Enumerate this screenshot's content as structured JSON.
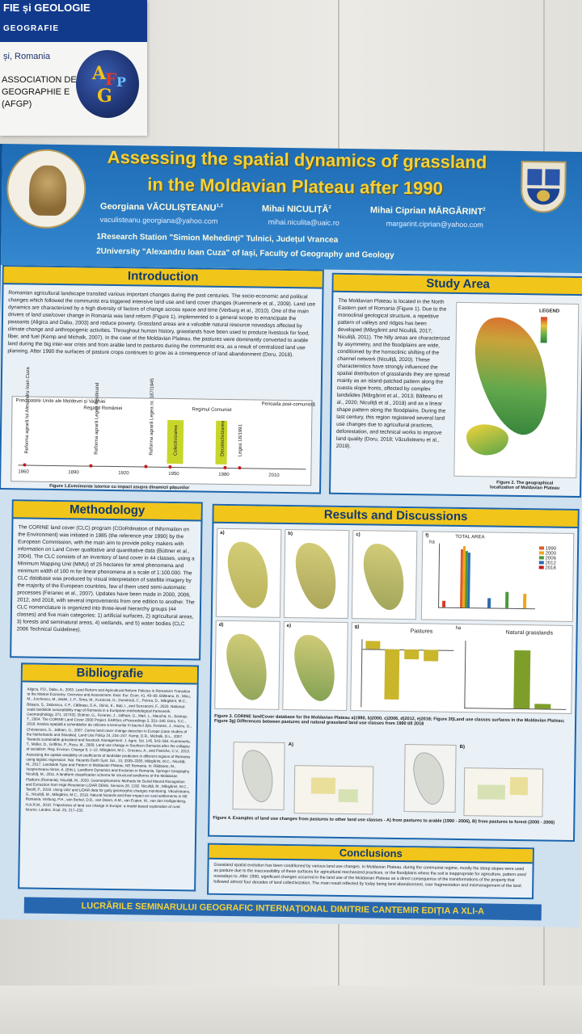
{
  "sign": {
    "line1": "FIE și GEOLOGIE",
    "line2": "GEOGRAFIE",
    "line3": "și, Romania",
    "line4": "ASSOCIATION DE GEOGRAPHIE E (AFGP)",
    "logo_letters": [
      "A",
      "F",
      "G",
      "P"
    ]
  },
  "header": {
    "title_line1": "Assessing the spatial dynamics of grassland",
    "title_line2": "in the  Moldavian Plateau after 1990",
    "authors": [
      {
        "name": "Georgiana VĂCULIȘTEANU",
        "sup": "1,2",
        "email": "vaculisteanu.georgiana@yahoo.com"
      },
      {
        "name": "Mihai NICULIȚĂ",
        "sup": "2",
        "email": "mihai.niculita@uaic.ro"
      },
      {
        "name": "Mihai Ciprian MĂRGĂRINT",
        "sup": "2",
        "email": "margarint.ciprian@yahoo.com"
      }
    ],
    "affiliation1": "1Research Station \"Simion Mehedinți\" Tulnici, Județul Vrancea",
    "affiliation2": "2University \"Alexandru Ioan Cuza\" of Iași, Faculty of Geography and Geology",
    "seal_text": "ALMA MATER IASIENSIS · UNA ROLA TERRA PRO OMNIBUS"
  },
  "introduction": {
    "heading": "Introduction",
    "body": "Romanian agricultural landscape transited various important changes during the past centuries. The socio-economic and political changes which followed the communist era triggered intensive land use and land cover changes (Kuemmerle et al., 2009). Land use dynamics are characterized by a high diversity of factors of change across space and time (Verburg et al., 2010). One of the main drivers of land use/cover change in Romania was land reform (Figure 1), implemented to a general scope to emancipate the peasants (Aligica and Dabu, 2003) and reduce poverty. Grassland areas are a valuable natural resource nowadays affected by climate change and anthropogenic activities. Throughout human history, grasslands have been used to produce livestock for food, fiber, and fuel (Kemp and Michalk, 2007). In the case of the Moldavian Plateau, the pastures were dominantly converted to arable land during the big inter-war crisis and from arable land to pastures during the communist era, as a result of centralized land use planning. After 1990 the surfaces of pasture crops continues to grow as a consequence of land abandonment (Doru, 2018).",
    "timeline": {
      "labels": [
        "Principatele Unite ale Moldovei și Valahiei",
        "Regatul României",
        "Regimul Comunist",
        "Perioada post-comunistă"
      ],
      "ticks": [
        "1860",
        "1890",
        "1920",
        "1950",
        "1980",
        "2010"
      ],
      "events": [
        "Reforma agrară lui Alexandru Ioan Cuza",
        "Reforma agrară Legea Ferdinand",
        "Reforma agrară Legea nr. 187/1945",
        "Colectivizarea",
        "Decolectivizarea",
        "Legea 18/1991"
      ],
      "caption": "Figure 1.Evenimente istorice cu impact asupra dinamicii pășunilor"
    }
  },
  "study_area": {
    "heading": "Study Area",
    "body": "The Moldavian Plateau is located in the North Eastern part of Romania (Figure 1). Due to the monoclinal geological structure, a repetitive pattern of valleys and ridges has been developed (Mărgărint and Niculiță, 2017; Niculiță, 2011). The hilly areas are characterized by asymmetry, and the floodplains are wide, conditioned by the homoclinic shifting of the channel network (Niculiță, 2020). These characteristics have strongly influenced the spatial distribution of grasslands they are spread mainly as an island-patched pattern along the cuesta slope fronts, affected by complex landslides (Mărgărint et al., 2013; Bălteanu et al., 2020; Niculiță et al., 2019) and as a linear shape pattern along the floodplains. During the last century, this region registered several land use changes due to agricultural practices, deforestation, and technical works to improve land quality (Doru, 2018; Văculisteanu et al., 2019).",
    "legend_title": "LEGEND",
    "caption": "Figure 2. The geographical localization of Moldavian Plateau"
  },
  "methodology": {
    "heading": "Methodology",
    "body": "The CORINE land cover (CLC) program (COoRdination of INformation on the Environment) was initiated in 1985 (the reference year 1990) by the European Commission, with the main aim to provide policy makers with information on Land Cover qualitative and quantitative data (Büttner et al., 2004). The CLC consists of an inventory of land cover in 44 classes, using a Minimum Mapping Unit (MMU) of 25 hectares for areal phenomena and minimum width of 100 m for linear phenomena at a scale of 1:100.000. The CLC database was produced by visual interpretation of satellite imagery by the majority of the European countries, few of them used semi-automatic processes (Feranec et al., 2007). Updates have been made in 2000, 2006, 2012, and 2018, with several improvements from one edition to another. The CLC nomenclature is organized into three-level hierarchy groups (44 classes) and five main categories: 1) artificial surfaces, 2) agricultural areas, 3) forests and seminatural areas, 4) wetlands, and 5) water bodies (CLC 2006 Technical Guidelines)."
  },
  "bibliography": {
    "heading": "Bibliografie",
    "body": "Aligica, P.D., Dabu, A., 2003. Land Reform and Agricultural Reform Policies in Romania's Transition to the Market Economy: Overview and Assessment. East. Eur. Econ. 41, 49–69. Bălteanu, D., Micu, M., Jurchescu, M., Malet, J.-P., Sima, M., Kucsicsa, G., Dumitrică, C., Petrea, D., Mărgărint, M.C., Bilașco, Ș., Dobrescu, C.F., Călărașu, E.A., Olinic, E., Boți, I., and Senzaconi, F., 2020. National-scale landslide susceptibility map of Romania in a European methodological framework. Geomorphology, 371, 107432. Büttner, G., Feranec, J., Jaffrain, G., Mari, L., Maucha, G., Soukup, T., 2004. The CORINE Land Cover 2000 Project. EARSeL eProceedings 3, 331–346. Doru, S.C., 2018. Analiza spațială a schimbărilor de utilizare a terenurilor în bazinul Jijia. Feranec, J., Hazeu, G., Christensen, S., Jaffrain, G., 2007. Corine land cover change detection in Europe (case studies of the Netherlands and Slovakia). Land Use Policy 24, 234–247. Kemp, D.R., Michalk, D.L., 2007. Towards sustainable grassland and livestock management. J. Agric. Sci. 145, 543–564. Kuemmerle, T., Müller, D., Griffiths, P., Rusu, M., 2009. Land use change in Southern Romania after the collapse of socialism. Reg. Environ. Change 9, 1–12. Mărgărint, M.C., Grozavu, A., and Patriche, C.V., 2013. Assessing the spatial variability of coefficients of landslide predictors in different regions of Romania using logistic regression. Nat. Hazards Earth Syst. Sci., 13, 3339–3355. Mărgărint, M.C., Niculiță, M., 2017. Landslide Type and Pattern in Moldavian Plateau, NE Romania. In: Rădoane, M., Vespremeanu-Stroe, A. (Eds.), Landform Dynamics and Evolution in Romania. Springer Geography. Niculiță, M., 2011. A landform classification schema for structural landforms of the Moldavian Platform (Romania). Niculiță, M., 2020. Geomorphometric Methods for Burial Mound Recognition and Extraction from High-Resolution LiDAR DEMs. Sensors 20, 1192. Niculiță, M., Mărgărint, M.C., Tarolli, P., 2019. Using UAV and LiDAR data for gully geomorphic changes monitoring. Văculisteanu, G., Niculiță, M., Mărgărint, M.C., 2019. Natural hazards and their impact on rural settlements in NE Romania. Verburg, P.H., van Berkel, D.B., van Doorn, A.M., van Eupen, M., van den Heiligenberg, H.A.R.M., 2010. Trajectories of land use change in Europe: a model-based exploration of rural futures. Landsc. Ecol. 25, 217–232."
  },
  "results": {
    "heading": "Results and Discussions",
    "panel_labels": [
      "a)",
      "b)",
      "c)",
      "d)",
      "e)",
      "f)",
      "g)"
    ],
    "chart_f_title": "TOTAL AREA",
    "chart_f_years": [
      "1990",
      "2000",
      "2006",
      "2012",
      "2018"
    ],
    "chart_g_titles": [
      "Pastures",
      "Natural grasslands"
    ],
    "chart_unit": "ha",
    "caption1": "Figure 3. CORINE landCover database for the Moldavian Plateau a)1990, b)2000, c)2006, d)2012, e)2018; Figure 3f)Land use classes surfaces in the Moldavian Plateau; Figure 3g) Differences between pastures and natural grassland land use classes from 1990 till 2018",
    "map_labels": [
      "A)",
      "B)"
    ],
    "caption2": "Figure 4. Examples of land use changes from pastures to other land use classes - A) from pastures to arable (1990 - 2006), B) from pastures to forest (2000 - 2006)"
  },
  "conclusions": {
    "heading": "Conclusions",
    "body": "Grassland spatial evolution has been conditioned by various land use changes. In Moldavian Plateau, during the communist regime, mostly the steep slopes were used as pasture due to the inaccessibility of these surfaces for agricultural mechanized practices, or the floodplains where the soil is inappropriate for agriculture, pattern used nowadays to. After 1990, significant changes occurred in the land use of the Moldavian Plateau as a direct consequence of the transformations of the property that followed almost four decades of land collectivization. The main result reflected by today being land abandonment, over fragmentation and mismanagement of the land."
  },
  "footer": {
    "text": "LUCRĂRILE SEMINARULUI GEOGRAFIC INTERNAȚIONAL DIMITRIE CANTEMIR EDIȚIA A XLI-A"
  },
  "colors": {
    "header_blue": "#1e6cb5",
    "section_yellow": "#f1c51a",
    "title_yellow": "#f3d23a",
    "citation_red": "#c21a1a"
  }
}
